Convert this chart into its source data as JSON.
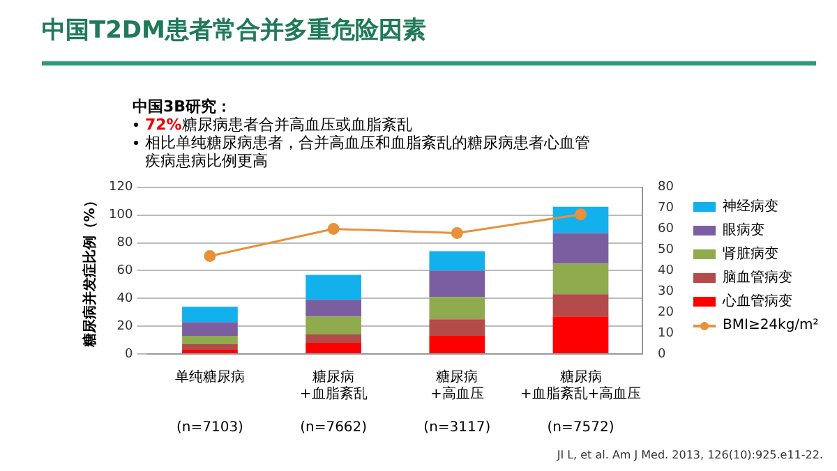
{
  "chart_data": {
    "type": "bar",
    "title": "中国T2DM患者常合并多重危险因素",
    "ylabel": "糖尿病并发症比例（%）",
    "annotations": [
      "中国3B研究：",
      "72%糖尿病患者合并高血压或血脂紊乱",
      "相比单纯糖尿病患者，合并高血压和血脂紊乱的糖尿病患者心血管疾病患病比例更高",
      "JI L, et al. Am J Med. 2013, 126(10):925.e11-22."
    ],
    "categories": [
      "单纯糖尿病\n(n=7103)",
      "糖尿病\n+血脂紊乱\n(n=7662)",
      "糖尿病\n+高血压\n(n=3117)",
      "糖尿病\n+血脂紊乱+高血压\n(n=7572)"
    ],
    "stacked": true,
    "series": [
      {
        "name": "心血管病变",
        "color": "#ff0000",
        "values": [
          3,
          8,
          13,
          27
        ]
      },
      {
        "name": "脑血管病变",
        "color": "#b44a4a",
        "values": [
          4,
          6,
          12,
          16
        ]
      },
      {
        "name": "肾脏病变",
        "color": "#8fab4e",
        "values": [
          6,
          13,
          16,
          22
        ]
      },
      {
        "name": "眼病变",
        "color": "#7b5ea0",
        "values": [
          10,
          12,
          19,
          22
        ]
      },
      {
        "name": "神经病变",
        "color": "#12b1ee",
        "values": [
          11,
          18,
          14,
          19
        ]
      },
      {
        "name": "BMI≥24kg/m²",
        "color": "#e8913a",
        "type": "line",
        "axis": "y2",
        "values": [
          47,
          60,
          58,
          67
        ]
      }
    ],
    "ylim": [
      0,
      120
    ],
    "yticks": [
      0,
      20,
      40,
      60,
      80,
      100,
      120
    ],
    "y2lim": [
      0,
      80
    ],
    "y2ticks": [
      0,
      10,
      20,
      30,
      40,
      50,
      60,
      70,
      80
    ],
    "grid": "y",
    "legend": "right",
    "marker": "circle"
  }
}
